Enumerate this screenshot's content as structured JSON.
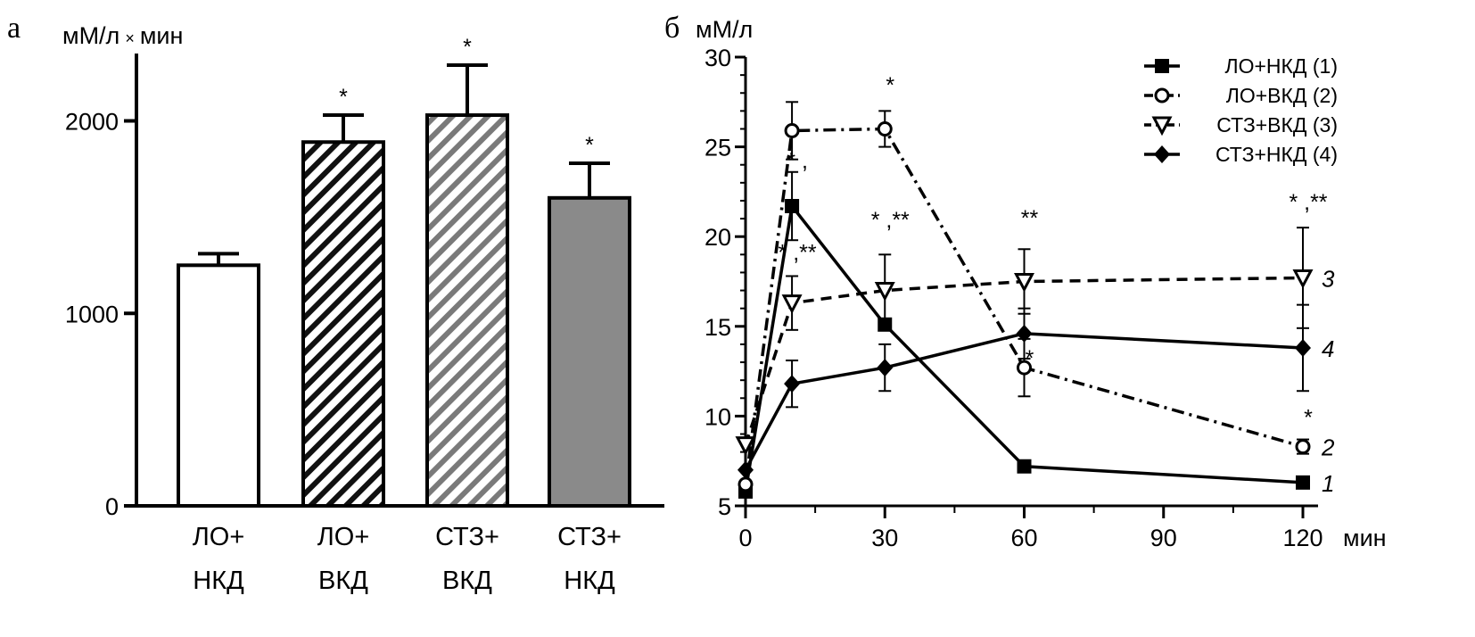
{
  "chart_data": [
    {
      "panel": "а",
      "type": "bar",
      "ylabel_main": "мМ/л",
      "ylabel_times": "×",
      "ylabel_unit": "мин",
      "ylim": [
        0,
        2350
      ],
      "yticks": [
        0,
        1000,
        2000
      ],
      "categories": [
        {
          "line1": "ЛО+",
          "line2": "НКД"
        },
        {
          "line1": "ЛО+",
          "line2": "ВКД"
        },
        {
          "line1": "СТЗ+",
          "line2": "ВКД"
        },
        {
          "line1": "СТЗ+",
          "line2": "НКД"
        }
      ],
      "values": [
        1250,
        1890,
        2030,
        1600
      ],
      "errors": [
        60,
        140,
        260,
        180
      ],
      "fills": [
        "white",
        "black-hatch",
        "gray-hatch",
        "#8a8a8a"
      ],
      "significance": [
        "",
        "*",
        "*",
        "*"
      ]
    },
    {
      "panel": "б",
      "type": "line",
      "ylabel": "мМ/л",
      "xlabel": "мин",
      "xlim": [
        0,
        120
      ],
      "ylim": [
        5,
        30
      ],
      "xticks": [
        0,
        30,
        60,
        90,
        120
      ],
      "yticks": [
        5,
        10,
        15,
        20,
        25,
        30
      ],
      "x": [
        0,
        10,
        30,
        60,
        120
      ],
      "series": [
        {
          "name": "ЛО+НКД (1)",
          "num": "1",
          "marker": "square",
          "dash": "solid",
          "values": [
            5.8,
            21.7,
            15.1,
            7.2,
            6.3
          ],
          "errors": [
            0,
            1.9,
            0,
            0,
            0
          ]
        },
        {
          "name": "ЛО+ВКД (2)",
          "num": "2",
          "marker": "circle",
          "dash": "dashdot",
          "values": [
            6.2,
            25.9,
            26.0,
            12.7,
            8.3
          ],
          "errors": [
            0,
            1.6,
            1.0,
            1.6,
            0.4
          ]
        },
        {
          "name": "СТЗ+ВКД (3)",
          "num": "3",
          "marker": "triangle-down",
          "dash": "dash",
          "values": [
            8.4,
            16.3,
            17.0,
            17.5,
            17.7
          ],
          "errors": [
            0,
            1.5,
            2.0,
            1.8,
            2.8
          ]
        },
        {
          "name": "СТЗ+НКД (4)",
          "num": "4",
          "marker": "diamond",
          "dash": "solid",
          "values": [
            7.0,
            11.8,
            12.7,
            14.6,
            13.8
          ],
          "errors": [
            0,
            1.3,
            1.3,
            1.4,
            2.4
          ]
        }
      ],
      "annotations": [
        {
          "text": "*",
          "x": 30,
          "y": 28.0
        },
        {
          "text": "* ,",
          "x": 10,
          "y": 23.8
        },
        {
          "text": "* ,**",
          "x": 10,
          "y": 18.7
        },
        {
          "text": "* ,**",
          "x": 30,
          "y": 20.5
        },
        {
          "text": "**",
          "x": 60,
          "y": 20.6
        },
        {
          "text": "*",
          "x": 60,
          "y": 12.8
        },
        {
          "text": "* ,**",
          "x": 120,
          "y": 21.5
        },
        {
          "text": "*",
          "x": 120,
          "y": 9.5
        }
      ]
    }
  ]
}
